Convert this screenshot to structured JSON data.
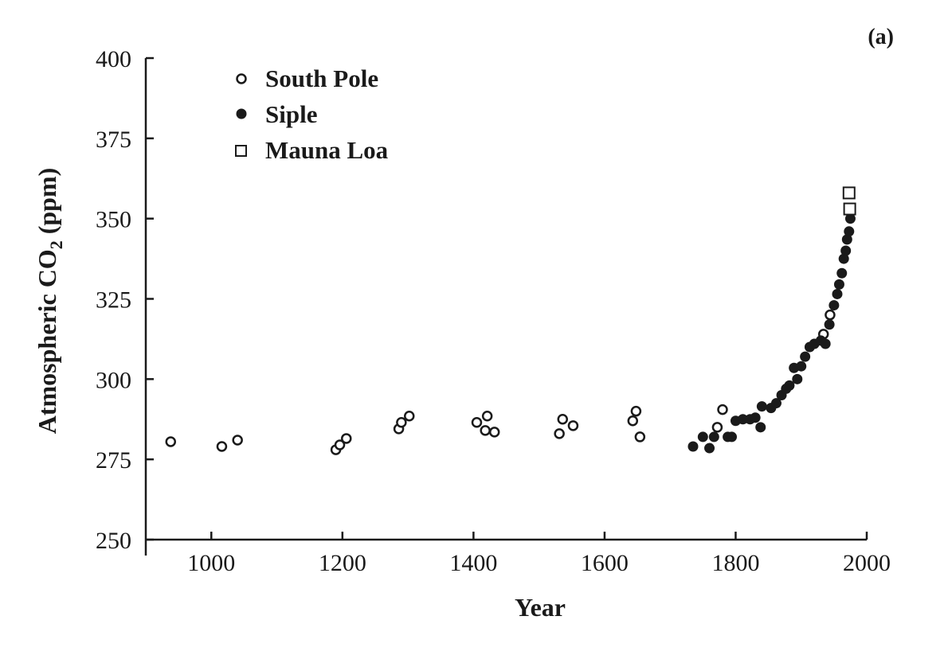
{
  "chart_data": {
    "type": "scatter",
    "panel_label": "(a)",
    "xlabel": "Year",
    "ylabel_main": "Atmospheric CO",
    "ylabel_sub": "2",
    "ylabel_unit": " (ppm)",
    "xlim": [
      900,
      2000
    ],
    "ylim": [
      250,
      400
    ],
    "xticks": [
      1000,
      1200,
      1400,
      1600,
      1800,
      2000
    ],
    "yticks": [
      250,
      275,
      300,
      325,
      350,
      375,
      400
    ],
    "grid": false,
    "legend_position": "top-left",
    "series": [
      {
        "name": "South Pole",
        "marker": "open-circle",
        "points": [
          [
            938,
            280.5
          ],
          [
            1016,
            279
          ],
          [
            1040,
            281
          ],
          [
            1190,
            278
          ],
          [
            1196,
            279.5
          ],
          [
            1206,
            281.5
          ],
          [
            1286,
            284.5
          ],
          [
            1290,
            286.5
          ],
          [
            1302,
            288.5
          ],
          [
            1405,
            286.5
          ],
          [
            1418,
            284
          ],
          [
            1421,
            288.5
          ],
          [
            1432,
            283.5
          ],
          [
            1531,
            283
          ],
          [
            1536,
            287.5
          ],
          [
            1552,
            285.5
          ],
          [
            1643,
            287
          ],
          [
            1648,
            290
          ],
          [
            1654,
            282
          ],
          [
            1772,
            285
          ],
          [
            1780,
            290.5
          ],
          [
            1934,
            314
          ],
          [
            1944,
            320
          ]
        ]
      },
      {
        "name": "Siple",
        "marker": "filled-circle",
        "points": [
          [
            1735,
            279
          ],
          [
            1750,
            282
          ],
          [
            1760,
            278.5
          ],
          [
            1767,
            282
          ],
          [
            1788,
            282
          ],
          [
            1794,
            282
          ],
          [
            1800,
            287
          ],
          [
            1811,
            287.5
          ],
          [
            1822,
            287.5
          ],
          [
            1830,
            288
          ],
          [
            1838,
            285
          ],
          [
            1840,
            291.5
          ],
          [
            1854,
            291
          ],
          [
            1862,
            292.5
          ],
          [
            1870,
            295
          ],
          [
            1877,
            297
          ],
          [
            1882,
            298
          ],
          [
            1889,
            303.5
          ],
          [
            1894,
            300
          ],
          [
            1900,
            304
          ],
          [
            1906,
            307
          ],
          [
            1913,
            310
          ],
          [
            1920,
            311
          ],
          [
            1930,
            312
          ],
          [
            1937,
            311
          ],
          [
            1943,
            317
          ],
          [
            1950,
            323
          ],
          [
            1955,
            326.5
          ],
          [
            1958,
            329.5
          ],
          [
            1962,
            333
          ],
          [
            1965,
            337.5
          ],
          [
            1968,
            340
          ],
          [
            1970,
            343.5
          ],
          [
            1973,
            346
          ],
          [
            1975,
            350
          ]
        ]
      },
      {
        "name": "Mauna Loa",
        "marker": "open-square",
        "points": [
          [
            1973,
            358
          ],
          [
            1974,
            353
          ]
        ]
      }
    ]
  }
}
